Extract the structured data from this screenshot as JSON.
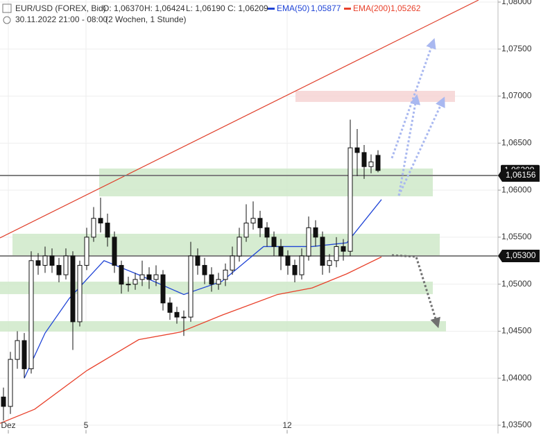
{
  "chart_data": {
    "type": "candlestick",
    "header": {
      "symbol": "EUR/USD (FOREX, Bid)",
      "open": "O: 1,06370",
      "high": "H: 1,06424",
      "low": "L: 1,06190",
      "close": "C: 1,06209",
      "period": "30.11.2022 21:00 - 08:00",
      "span": "(2 Wochen, 1 Stunde)"
    },
    "ylim": [
      1.035,
      1.08
    ],
    "yticks": [
      {
        "value": 1.035,
        "label": "1,03500"
      },
      {
        "value": 1.04,
        "label": "1,04000"
      },
      {
        "value": 1.045,
        "label": "1,04500"
      },
      {
        "value": 1.05,
        "label": "1,05000"
      },
      {
        "value": 1.055,
        "label": "1,05500"
      },
      {
        "value": 1.06,
        "label": "1,06000"
      },
      {
        "value": 1.065,
        "label": "1,06500"
      },
      {
        "value": 1.07,
        "label": "1,07000"
      },
      {
        "value": 1.075,
        "label": "1,07500"
      },
      {
        "value": 1.08,
        "label": "1,08000"
      }
    ],
    "xlim": [
      -0.5,
      71.3
    ],
    "xticks": [
      {
        "value": 0.7,
        "label": "Dez"
      },
      {
        "value": 11.9,
        "label": "5"
      },
      {
        "value": 40.9,
        "label": "12"
      }
    ],
    "grid": true,
    "candles": {
      "up_color": "#ffffff",
      "down_color": "#111111",
      "open": [
        1.038,
        1.037,
        1.042,
        1.044,
        1.041,
        1.0525,
        1.052,
        1.053,
        1.052,
        1.051,
        1.053,
        1.046,
        1.052,
        1.055,
        1.057,
        1.0565,
        1.055,
        1.052,
        1.05,
        1.05,
        1.0505,
        1.051,
        1.0505,
        1.051,
        1.048,
        1.047,
        1.0465,
        1.0465,
        1.053,
        1.052,
        1.051,
        1.05,
        1.0505,
        1.0515,
        1.053,
        1.055,
        1.0565,
        1.057,
        1.056,
        1.055,
        1.054,
        1.053,
        1.052,
        1.051,
        1.053,
        1.056,
        1.055,
        1.052,
        1.0525,
        1.054,
        1.0535,
        1.0645,
        1.064,
        1.0625,
        1.0637
      ],
      "high": [
        1.039,
        1.0428,
        1.045,
        1.0448,
        1.0535,
        1.0533,
        1.054,
        1.0538,
        1.0528,
        1.0538,
        1.0535,
        1.0525,
        1.056,
        1.0582,
        1.0592,
        1.0575,
        1.0556,
        1.0525,
        1.0508,
        1.0512,
        1.0525,
        1.0518,
        1.052,
        1.0515,
        1.0486,
        1.0476,
        1.0472,
        1.0545,
        1.0538,
        1.0528,
        1.0518,
        1.0512,
        1.0522,
        1.054,
        1.056,
        1.0585,
        1.0588,
        1.0578,
        1.0566,
        1.0556,
        1.0548,
        1.0536,
        1.0526,
        1.0538,
        1.0572,
        1.0568,
        1.0556,
        1.0532,
        1.055,
        1.0548,
        1.0675,
        1.0665,
        1.0648,
        1.0638,
        1.06424
      ],
      "low": [
        1.0355,
        1.0362,
        1.041,
        1.04,
        1.0405,
        1.051,
        1.0512,
        1.0512,
        1.0502,
        1.0505,
        1.043,
        1.0455,
        1.0515,
        1.0545,
        1.0555,
        1.054,
        1.0512,
        1.049,
        1.0492,
        1.0494,
        1.0498,
        1.0495,
        1.0498,
        1.0472,
        1.0462,
        1.0458,
        1.0445,
        1.046,
        1.051,
        1.05,
        1.0492,
        1.0494,
        1.0498,
        1.051,
        1.0524,
        1.0545,
        1.0558,
        1.055,
        1.054,
        1.053,
        1.0515,
        1.051,
        1.0502,
        1.0505,
        1.0525,
        1.054,
        1.051,
        1.0512,
        1.0518,
        1.0525,
        1.053,
        1.0615,
        1.0612,
        1.0618,
        1.0619
      ],
      "close": [
        1.037,
        1.042,
        1.044,
        1.041,
        1.0525,
        1.052,
        1.053,
        1.052,
        1.051,
        1.053,
        1.046,
        1.052,
        1.055,
        1.057,
        1.0565,
        1.055,
        1.052,
        1.05,
        1.05,
        1.0505,
        1.051,
        1.0505,
        1.051,
        1.048,
        1.047,
        1.0465,
        1.0465,
        1.053,
        1.052,
        1.051,
        1.05,
        1.0505,
        1.0515,
        1.053,
        1.055,
        1.0565,
        1.057,
        1.056,
        1.055,
        1.054,
        1.053,
        1.052,
        1.051,
        1.053,
        1.056,
        1.055,
        1.052,
        1.0525,
        1.054,
        1.0535,
        1.0645,
        1.064,
        1.0625,
        1.063,
        1.06209
      ]
    },
    "series": [
      {
        "name": "EMA(50)",
        "label": "1,05877",
        "color": "#1f44d6",
        "x": [
          3,
          6,
          9.5,
          14.5,
          19.5,
          26,
          31.5,
          37.5,
          41.5,
          44.5,
          49.5,
          54.5
        ],
        "values": [
          1.04,
          1.0448,
          1.0485,
          1.0525,
          1.051,
          1.0489,
          1.0503,
          1.054,
          1.054,
          1.054,
          1.0544,
          1.059
        ]
      },
      {
        "name": "EMA(200)",
        "label": "1,05262",
        "color": "#e8402a",
        "x": [
          -0.5,
          4.5,
          12,
          19.5,
          25.5,
          31.5,
          39.5,
          44.5,
          49.5,
          54.5
        ],
        "values": [
          1.0352,
          1.0367,
          1.0408,
          1.0441,
          1.0449,
          1.0467,
          1.0489,
          1.0496,
          1.0511,
          1.0529
        ]
      }
    ],
    "trendline": {
      "color": "#e0402c",
      "x": [
        -0.5,
        68.5
      ],
      "values": [
        1.05492,
        1.08022
      ]
    },
    "zones": [
      {
        "color": "#cfe9c9",
        "x": [
          13.8,
          61.9
        ],
        "values": [
          1.05934,
          1.0623
        ]
      },
      {
        "color": "#cfe9c9",
        "x": [
          1.3,
          62.9
        ],
        "values": [
          1.05307,
          1.05536
        ]
      },
      {
        "color": "#cfe9c9",
        "x": [
          -0.5,
          61.9
        ],
        "values": [
          1.04894,
          1.05027
        ]
      },
      {
        "color": "#cfe9c9",
        "x": [
          -0.5,
          63.8
        ],
        "values": [
          1.04496,
          1.04607
        ]
      },
      {
        "color": "#f6d3d3",
        "x": [
          42.1,
          65.1
        ],
        "values": [
          1.06938,
          1.07056
        ]
      }
    ],
    "levels": [
      {
        "value": 1.06156,
        "label": "1,06156",
        "color": "#808080"
      },
      {
        "value": 1.053,
        "label": "1,05300",
        "color": "#808080"
      }
    ],
    "price_labels": [
      {
        "value": 1.06209,
        "label": "1,06209"
      }
    ]
  }
}
